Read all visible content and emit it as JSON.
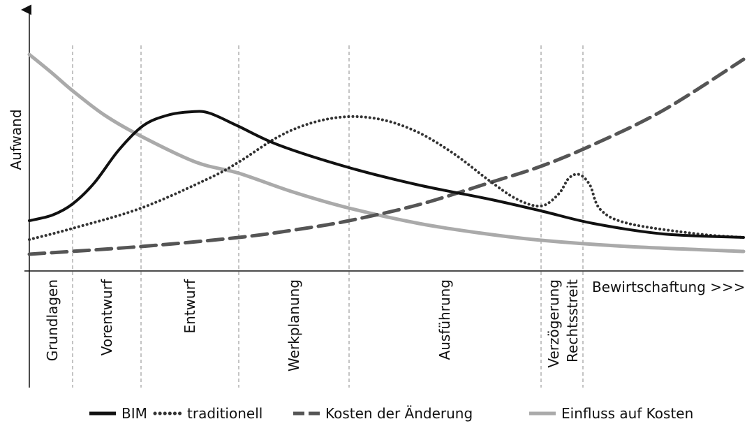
{
  "axis": {
    "y_label": "Aufwand",
    "x_end_label": "Bewirtschaftung >>>"
  },
  "phases": [
    "Grundlagen",
    "Vorentwurf",
    "Entwurf",
    "Werkplanung",
    "Ausführung",
    "Verzögerung",
    "Rechtsstreit"
  ],
  "legend": [
    "BIM",
    "traditionell",
    "Kosten der Änderung",
    "Einfluss auf Kosten"
  ]
}
